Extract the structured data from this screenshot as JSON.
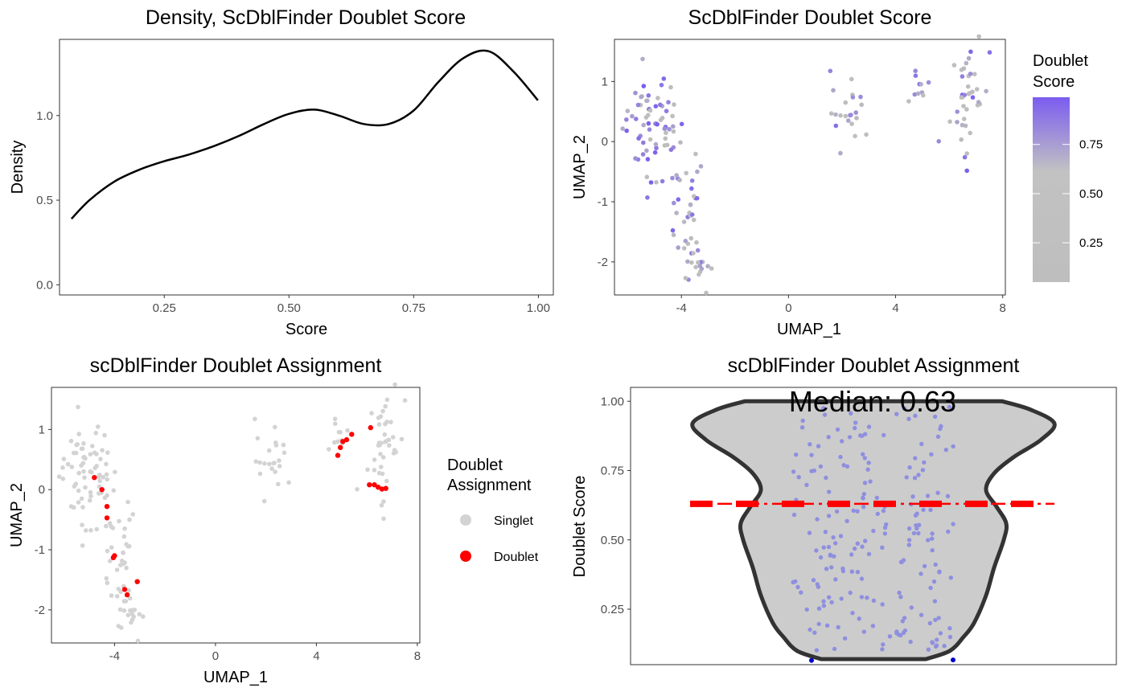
{
  "chart_data": [
    {
      "type": "line",
      "title": "Density, ScDblFinder Doublet Score",
      "xlabel": "Score",
      "ylabel": "Density",
      "xlim": [
        0.04,
        1.03
      ],
      "ylim": [
        -0.06,
        1.45
      ],
      "xticks": [
        0.25,
        0.5,
        0.75,
        1.0
      ],
      "xtick_labels": [
        "0.25",
        "0.50",
        "0.75",
        "1.00"
      ],
      "yticks": [
        0.0,
        0.5,
        1.0
      ],
      "ytick_labels": [
        "0.0",
        "0.5",
        "1.0"
      ],
      "grid": false,
      "series": [
        {
          "x": [
            0.064,
            0.1,
            0.15,
            0.2,
            0.25,
            0.3,
            0.35,
            0.4,
            0.45,
            0.5,
            0.55,
            0.6,
            0.65,
            0.7,
            0.75,
            0.8,
            0.85,
            0.9,
            0.95,
            0.999
          ],
          "y": [
            0.39,
            0.5,
            0.61,
            0.68,
            0.73,
            0.77,
            0.82,
            0.88,
            0.95,
            1.01,
            1.035,
            1.0,
            0.95,
            0.95,
            1.03,
            1.2,
            1.34,
            1.38,
            1.26,
            1.09
          ]
        }
      ]
    },
    {
      "type": "scatter",
      "title": "ScDblFinder Doublet Score",
      "xlabel": "UMAP_1",
      "ylabel": "UMAP_2",
      "xlim": [
        -6.5,
        8.1
      ],
      "ylim": [
        -2.55,
        1.7
      ],
      "xticks": [
        -4,
        0,
        4,
        8
      ],
      "xtick_labels": [
        "-4",
        "0",
        "4",
        "8"
      ],
      "yticks": [
        -2,
        -1,
        0,
        1
      ],
      "ytick_labels": [
        "-2",
        "-1",
        "0",
        "1"
      ],
      "grid": false,
      "legend": {
        "title_lines": [
          "Doublet",
          "Score"
        ],
        "placement": "right",
        "ticks": [
          0.75,
          0.5,
          0.25
        ],
        "tick_labels": [
          "0.75",
          "0.50",
          "0.25"
        ],
        "range": [
          0.05,
          0.99
        ],
        "low_color": "#bebebe",
        "mid_color": "#c2c2c2",
        "high_color": "#7b5cf0"
      }
    },
    {
      "type": "scatter",
      "title": "scDblFinder Doublet Assignment",
      "xlabel": "UMAP_1",
      "ylabel": "UMAP_2",
      "xlim": [
        -6.5,
        8.1
      ],
      "ylim": [
        -2.55,
        1.7
      ],
      "xticks": [
        -4,
        0,
        4,
        8
      ],
      "xtick_labels": [
        "-4",
        "0",
        "4",
        "8"
      ],
      "yticks": [
        -2,
        -1,
        0,
        1
      ],
      "ytick_labels": [
        "-2",
        "-1",
        "0",
        "1"
      ],
      "grid": false,
      "legend": {
        "title_lines": [
          "Doublet",
          "Assignment"
        ],
        "placement": "right",
        "entries": [
          {
            "label": "Singlet",
            "color": "#d3d3d3"
          },
          {
            "label": "Doublet",
            "color": "#ff0000"
          }
        ]
      }
    },
    {
      "type": "violin",
      "title": "scDblFinder Doublet Assignment",
      "xlabel": "",
      "ylabel": "Doublet Score",
      "annotation": "Median: 0.63",
      "median": 0.63,
      "ylim": [
        0.05,
        1.05
      ],
      "yticks": [
        0.25,
        0.5,
        0.75,
        1.0
      ],
      "ytick_labels": [
        "0.25",
        "0.50",
        "0.75",
        "1.00"
      ],
      "grid": false,
      "violin_fill": "#cccccc",
      "violin_stroke": "#333333",
      "point_color": "#8f8fe0",
      "outlier_color": "#0000cc",
      "median_color": "#ff0000",
      "outlier_values": [
        0.065,
        0.067
      ]
    }
  ]
}
